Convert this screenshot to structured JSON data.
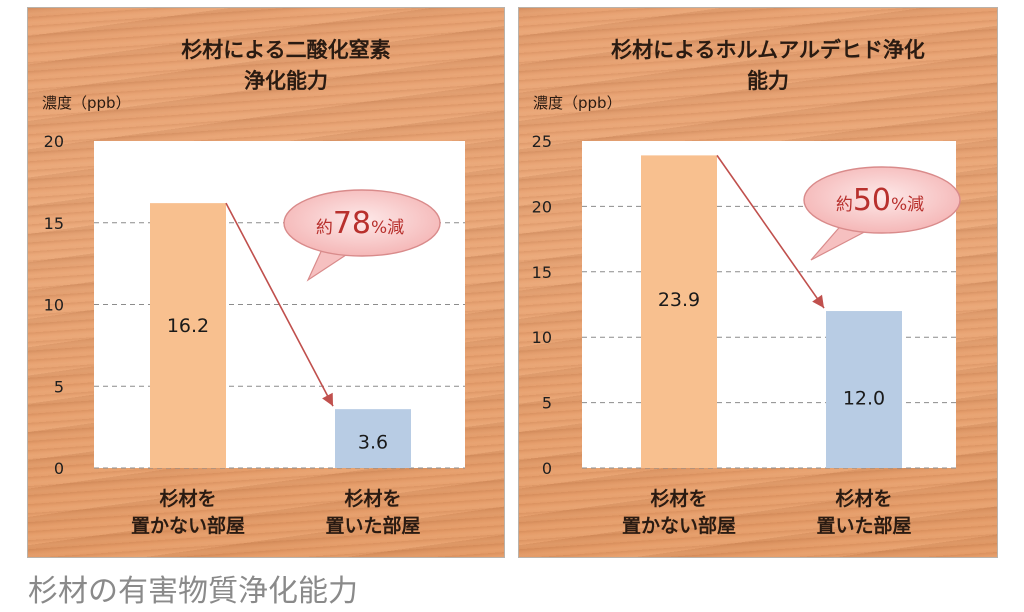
{
  "caption": "杉材の有害物質浄化能力",
  "chart_data": [
    {
      "type": "bar",
      "title": "杉材による二酸化窒素\n浄化能力",
      "ylabel": "濃度（ppb）",
      "categories": [
        "杉材を\n置かない部屋",
        "杉材を\n置いた部屋"
      ],
      "values": [
        16.2,
        3.6
      ],
      "value_labels": [
        "16.2",
        "3.6"
      ],
      "ylim": [
        0,
        20
      ],
      "yticks": [
        0,
        5,
        10,
        15,
        20
      ],
      "grid": true,
      "bar_colors": [
        "#f8c08f",
        "#b8cce4"
      ],
      "annotation": {
        "prefix": "約",
        "number": "78",
        "suffix": "%減"
      }
    },
    {
      "type": "bar",
      "title": "杉材によるホルムアルデヒド浄化\n能力",
      "ylabel": "濃度（ppb）",
      "categories": [
        "杉材を\n置かない部屋",
        "杉材を\n置いた部屋"
      ],
      "values": [
        23.9,
        12.0
      ],
      "value_labels": [
        "23.9",
        "12.0"
      ],
      "ylim": [
        0,
        25
      ],
      "yticks": [
        0,
        5,
        10,
        15,
        20,
        25
      ],
      "grid": true,
      "bar_colors": [
        "#f8c08f",
        "#b8cce4"
      ],
      "annotation": {
        "prefix": "約",
        "number": "50",
        "suffix": "%減"
      }
    }
  ]
}
